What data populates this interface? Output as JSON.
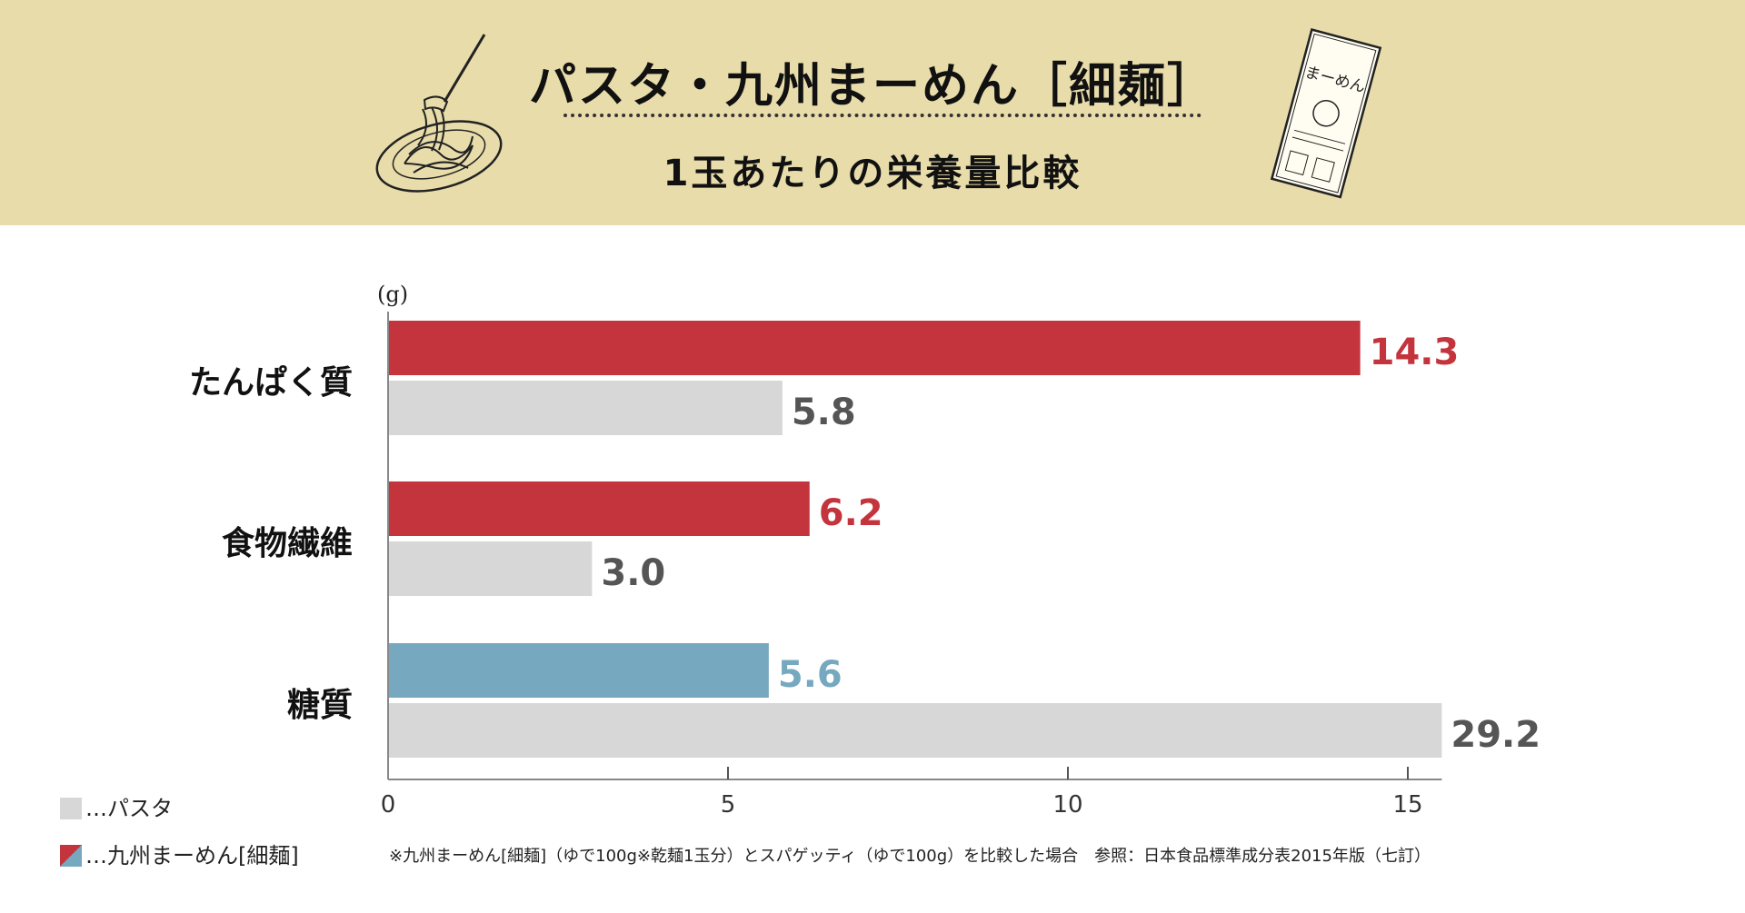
{
  "header": {
    "title": "パスタ・九州まーめん［細麺］",
    "subtitle": "1玉あたりの栄養量比較"
  },
  "chart_data": {
    "type": "bar",
    "orientation": "horizontal",
    "unit_label": "(g)",
    "categories": [
      "たんぱく質",
      "食物繊維",
      "糖質"
    ],
    "series": [
      {
        "name": "九州まーめん[細麺]",
        "values": [
          14.3,
          6.2,
          5.6
        ],
        "colors": [
          "#c4343d",
          "#c4343d",
          "#76a8bf"
        ],
        "labels": [
          "14.3",
          "6.2",
          "5.6"
        ]
      },
      {
        "name": "パスタ",
        "values": [
          5.8,
          3.0,
          29.2
        ],
        "color": "#d7d7d7",
        "label_color": "#555555",
        "labels": [
          "5.8",
          "3.0",
          "29.2"
        ]
      }
    ],
    "x_ticks": [
      "0",
      "5",
      "10",
      "15"
    ],
    "x_tick_values": [
      0,
      5,
      10,
      15
    ],
    "clip_max": 15.5,
    "legend_position": "bottom-left"
  },
  "legend": {
    "pasta": "…パスタ",
    "mamen": "…九州まーめん[細麺]"
  },
  "footnote": "※九州まーめん[細麺]（ゆで100g※乾麺1玉分）とスパゲッティ（ゆで100g）を比較した場合　参照：日本食品標準成分表2015年版（七訂）",
  "illustration": {
    "package_text": "まーめん"
  },
  "colors": {
    "header_bg": "#e8dcaa",
    "red": "#c4343d",
    "blue": "#76a8bf",
    "gray": "#d7d7d7"
  }
}
